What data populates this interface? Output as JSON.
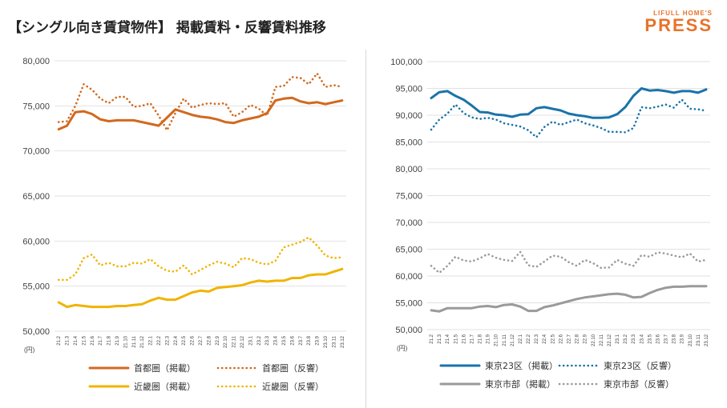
{
  "header": {
    "title": "【シングル向き賃貸物件】 掲載賃料・反響賃料推移",
    "logo_top": "LIFULL HOME'S",
    "logo_main": "PRESS"
  },
  "colors": {
    "shutoken": "#d2691e",
    "kinki": "#f0b400",
    "tokyo23": "#1a73a8",
    "tokyoshi": "#9a9a9a"
  },
  "chart_data": [
    {
      "type": "line",
      "categories": [
        "21.2",
        "21.3",
        "21.4",
        "21.5",
        "21.6",
        "21.7",
        "21.8",
        "21.9",
        "21.10",
        "21.11",
        "21.12",
        "22.1",
        "22.2",
        "22.3",
        "22.4",
        "22.5",
        "22.6",
        "22.7",
        "22.8",
        "22.9",
        "22.10",
        "22.11",
        "22.12",
        "23.1",
        "23.2",
        "23.3",
        "23.4",
        "23.5",
        "23.6",
        "23.7",
        "23.8",
        "23.9",
        "23.10",
        "23.11",
        "23.12"
      ],
      "yunit": "(円)",
      "ylim": [
        50000,
        80000
      ],
      "yticks": [
        50000,
        55000,
        60000,
        65000,
        70000,
        75000,
        80000
      ],
      "ytick_labels": [
        "50,000",
        "55,000",
        "60,000",
        "65,000",
        "70,000",
        "75,000",
        "80,000"
      ],
      "series": [
        {
          "name": "首都圏（掲載）",
          "style": "solid",
          "color": "#d2691e",
          "values": [
            72400,
            72800,
            74300,
            74400,
            74100,
            73500,
            73300,
            73400,
            73400,
            73400,
            73200,
            73000,
            72800,
            73700,
            74600,
            74300,
            74000,
            73800,
            73700,
            73500,
            73200,
            73100,
            73400,
            73600,
            73800,
            74200,
            75600,
            75800,
            75900,
            75500,
            75300,
            75400,
            75200,
            75400,
            75600
          ]
        },
        {
          "name": "首都圏（反響）",
          "style": "dotted",
          "color": "#d2691e",
          "values": [
            73200,
            73300,
            75000,
            77400,
            76800,
            75800,
            75300,
            76000,
            76000,
            74900,
            75000,
            75300,
            73900,
            72300,
            74200,
            75800,
            74800,
            75100,
            75300,
            75200,
            75300,
            73800,
            74300,
            75100,
            74700,
            73900,
            77100,
            77200,
            78200,
            78100,
            77400,
            78600,
            77100,
            77300,
            77100
          ]
        },
        {
          "name": "近畿圏（掲載）",
          "style": "solid",
          "color": "#f0b400",
          "values": [
            53200,
            52700,
            52900,
            52800,
            52700,
            52700,
            52700,
            52800,
            52800,
            52900,
            53000,
            53400,
            53700,
            53500,
            53500,
            53900,
            54300,
            54500,
            54400,
            54800,
            54900,
            55000,
            55100,
            55400,
            55600,
            55500,
            55600,
            55600,
            55900,
            55900,
            56200,
            56300,
            56300,
            56600,
            56900
          ]
        },
        {
          "name": "近畿圏（反響）",
          "style": "dotted",
          "color": "#f0b400",
          "values": [
            55700,
            55700,
            56300,
            58100,
            58500,
            57300,
            57600,
            57200,
            57200,
            57600,
            57500,
            58000,
            57200,
            56700,
            56600,
            57300,
            56300,
            56800,
            57300,
            57700,
            57500,
            57100,
            58100,
            58000,
            57600,
            57400,
            57800,
            59300,
            59600,
            59900,
            60400,
            59500,
            58400,
            58100,
            58200
          ]
        }
      ]
    },
    {
      "type": "line",
      "categories": [
        "21.2",
        "21.3",
        "21.4",
        "21.5",
        "21.6",
        "21.7",
        "21.8",
        "21.9",
        "21.10",
        "21.11",
        "21.12",
        "22.1",
        "22.2",
        "22.3",
        "22.4",
        "22.5",
        "22.6",
        "22.7",
        "22.8",
        "22.9",
        "22.10",
        "22.11",
        "22.12",
        "23.1",
        "23.2",
        "23.3",
        "23.4",
        "23.5",
        "23.6",
        "23.7",
        "23.8",
        "23.9",
        "23.10",
        "23.11",
        "23.12"
      ],
      "yunit": "(円)",
      "ylim": [
        50000,
        100000
      ],
      "yticks": [
        50000,
        55000,
        60000,
        65000,
        70000,
        75000,
        80000,
        85000,
        90000,
        95000,
        100000
      ],
      "ytick_labels": [
        "50,000",
        "55,000",
        "60,000",
        "65,000",
        "70,000",
        "75,000",
        "80,000",
        "85,000",
        "90,000",
        "95,000",
        "100,000"
      ],
      "series": [
        {
          "name": "東京23区（掲載）",
          "style": "solid",
          "color": "#1a73a8",
          "values": [
            93200,
            94300,
            94500,
            93600,
            92900,
            91800,
            90600,
            90500,
            90100,
            90000,
            89700,
            90100,
            90200,
            91300,
            91500,
            91200,
            90900,
            90300,
            90000,
            89800,
            89500,
            89500,
            89600,
            90200,
            91500,
            93600,
            95000,
            94600,
            94700,
            94500,
            94200,
            94500,
            94500,
            94200,
            94800
          ]
        },
        {
          "name": "東京23区（反響）",
          "style": "dotted",
          "color": "#1a73a8",
          "values": [
            87300,
            89200,
            90300,
            92000,
            90400,
            89600,
            89300,
            89500,
            89200,
            88500,
            88200,
            87900,
            87200,
            85900,
            87800,
            88800,
            88200,
            88700,
            89200,
            88500,
            88100,
            87600,
            86900,
            86900,
            86800,
            87600,
            91500,
            91300,
            91600,
            92000,
            91400,
            92900,
            91200,
            91100,
            90800
          ]
        },
        {
          "name": "東京市部（掲載）",
          "style": "solid",
          "color": "#9a9a9a",
          "values": [
            53600,
            53400,
            54000,
            54000,
            54000,
            54000,
            54300,
            54400,
            54200,
            54600,
            54700,
            54300,
            53500,
            53500,
            54200,
            54500,
            54900,
            55300,
            55700,
            56000,
            56200,
            56400,
            56600,
            56700,
            56500,
            56000,
            56100,
            56800,
            57400,
            57800,
            58000,
            58000,
            58100,
            58100,
            58100
          ]
        },
        {
          "name": "東京市部（反響）",
          "style": "dotted",
          "color": "#9a9a9a",
          "values": [
            61900,
            60600,
            61900,
            63600,
            62900,
            62700,
            63300,
            64100,
            63400,
            63000,
            62800,
            64500,
            62000,
            61700,
            62700,
            63800,
            63600,
            62600,
            61900,
            63000,
            62400,
            61500,
            61600,
            63000,
            62300,
            61900,
            63900,
            63600,
            64400,
            64200,
            63800,
            63500,
            64200,
            62700,
            63000
          ]
        }
      ]
    }
  ],
  "legends": {
    "left": [
      "首都圏（掲載）",
      "首都圏（反響）",
      "近畿圏（掲載）",
      "近畿圏（反響）"
    ],
    "right": [
      "東京23区（掲載）",
      "東京23区（反響）",
      "東京市部（掲載）",
      "東京市部（反響）"
    ]
  }
}
